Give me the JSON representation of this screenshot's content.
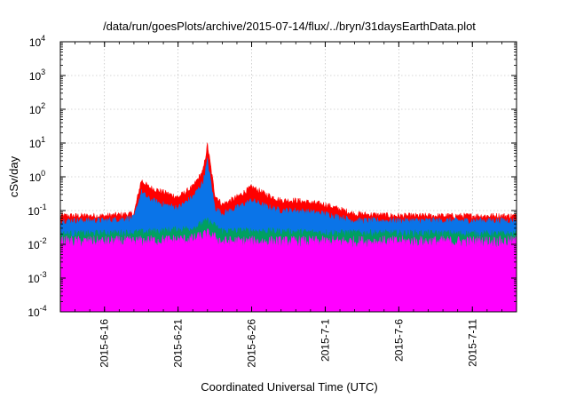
{
  "chart_data": {
    "type": "area",
    "title": "/data/run/goesPlots/archive/2015-07-14/flux/../bryn/31daysEarthData.plot",
    "xlabel": "Coordinated Universal Time (UTC)",
    "ylabel": "cSv/day",
    "y_scale": "log",
    "ylim": [
      0.0001,
      10000
    ],
    "y_ticks": [
      {
        "value": 0.0001,
        "exp": "-4"
      },
      {
        "value": 0.001,
        "exp": "-3"
      },
      {
        "value": 0.01,
        "exp": "-2"
      },
      {
        "value": 0.1,
        "exp": "-1"
      },
      {
        "value": 1,
        "exp": "0"
      },
      {
        "value": 10,
        "exp": "1"
      },
      {
        "value": 100,
        "exp": "2"
      },
      {
        "value": 1000,
        "exp": "3"
      },
      {
        "value": 10000,
        "exp": "4"
      }
    ],
    "y_tick_base": "10",
    "xlim": [
      "2015-06-13",
      "2015-07-14"
    ],
    "x_ticks": [
      "2015-6-16",
      "2015-6-21",
      "2015-6-26",
      "2015-7-1",
      "2015-7-6",
      "2015-7-11"
    ],
    "grid": true,
    "series": [
      {
        "color": "#ff0000",
        "x": [
          "2015-06-13",
          "2015-06-16",
          "2015-06-18",
          "2015-06-18.5",
          "2015-06-19",
          "2015-06-20",
          "2015-06-21",
          "2015-06-22",
          "2015-06-22.7",
          "2015-06-23",
          "2015-06-23.5",
          "2015-06-24",
          "2015-06-25",
          "2015-06-26",
          "2015-06-27",
          "2015-06-28",
          "2015-06-29",
          "2015-07-01",
          "2015-07-03",
          "2015-07-06",
          "2015-07-10",
          "2015-07-14"
        ],
        "values": [
          0.07,
          0.07,
          0.08,
          0.8,
          0.5,
          0.35,
          0.25,
          0.5,
          1.5,
          9,
          0.3,
          0.15,
          0.25,
          0.5,
          0.3,
          0.2,
          0.2,
          0.15,
          0.08,
          0.07,
          0.07,
          0.07
        ]
      },
      {
        "color": "#0a74e8",
        "x": [
          "2015-06-13",
          "2015-06-16",
          "2015-06-18",
          "2015-06-18.5",
          "2015-06-19",
          "2015-06-20",
          "2015-06-21",
          "2015-06-22",
          "2015-06-22.7",
          "2015-06-23",
          "2015-06-23.5",
          "2015-06-24",
          "2015-06-25",
          "2015-06-26",
          "2015-06-27",
          "2015-06-28",
          "2015-06-29",
          "2015-07-01",
          "2015-07-03",
          "2015-07-06",
          "2015-07-10",
          "2015-07-14"
        ],
        "values": [
          0.05,
          0.05,
          0.06,
          0.35,
          0.22,
          0.15,
          0.12,
          0.25,
          0.7,
          3,
          0.12,
          0.08,
          0.12,
          0.2,
          0.13,
          0.1,
          0.1,
          0.08,
          0.05,
          0.05,
          0.05,
          0.05
        ]
      },
      {
        "color": "#00a060",
        "x": [
          "2015-06-13",
          "2015-06-18",
          "2015-06-20",
          "2015-06-22",
          "2015-06-23",
          "2015-06-24",
          "2015-06-26",
          "2015-07-01",
          "2015-07-14"
        ],
        "values": [
          0.02,
          0.022,
          0.025,
          0.03,
          0.05,
          0.025,
          0.025,
          0.022,
          0.02
        ]
      },
      {
        "color": "#ff00ff",
        "x": [
          "2015-06-13",
          "2015-06-18",
          "2015-06-20",
          "2015-06-22",
          "2015-06-23",
          "2015-06-24",
          "2015-06-26",
          "2015-07-01",
          "2015-07-14"
        ],
        "values": [
          0.012,
          0.012,
          0.013,
          0.014,
          0.02,
          0.012,
          0.012,
          0.012,
          0.012
        ]
      }
    ],
    "dips": [
      "2015-06-17",
      "2015-06-19.2",
      "2015-06-19.5",
      "2015-06-22.5",
      "2015-06-23",
      "2015-06-25.9",
      "2015-07-02.8",
      "2015-07-09.7"
    ]
  }
}
